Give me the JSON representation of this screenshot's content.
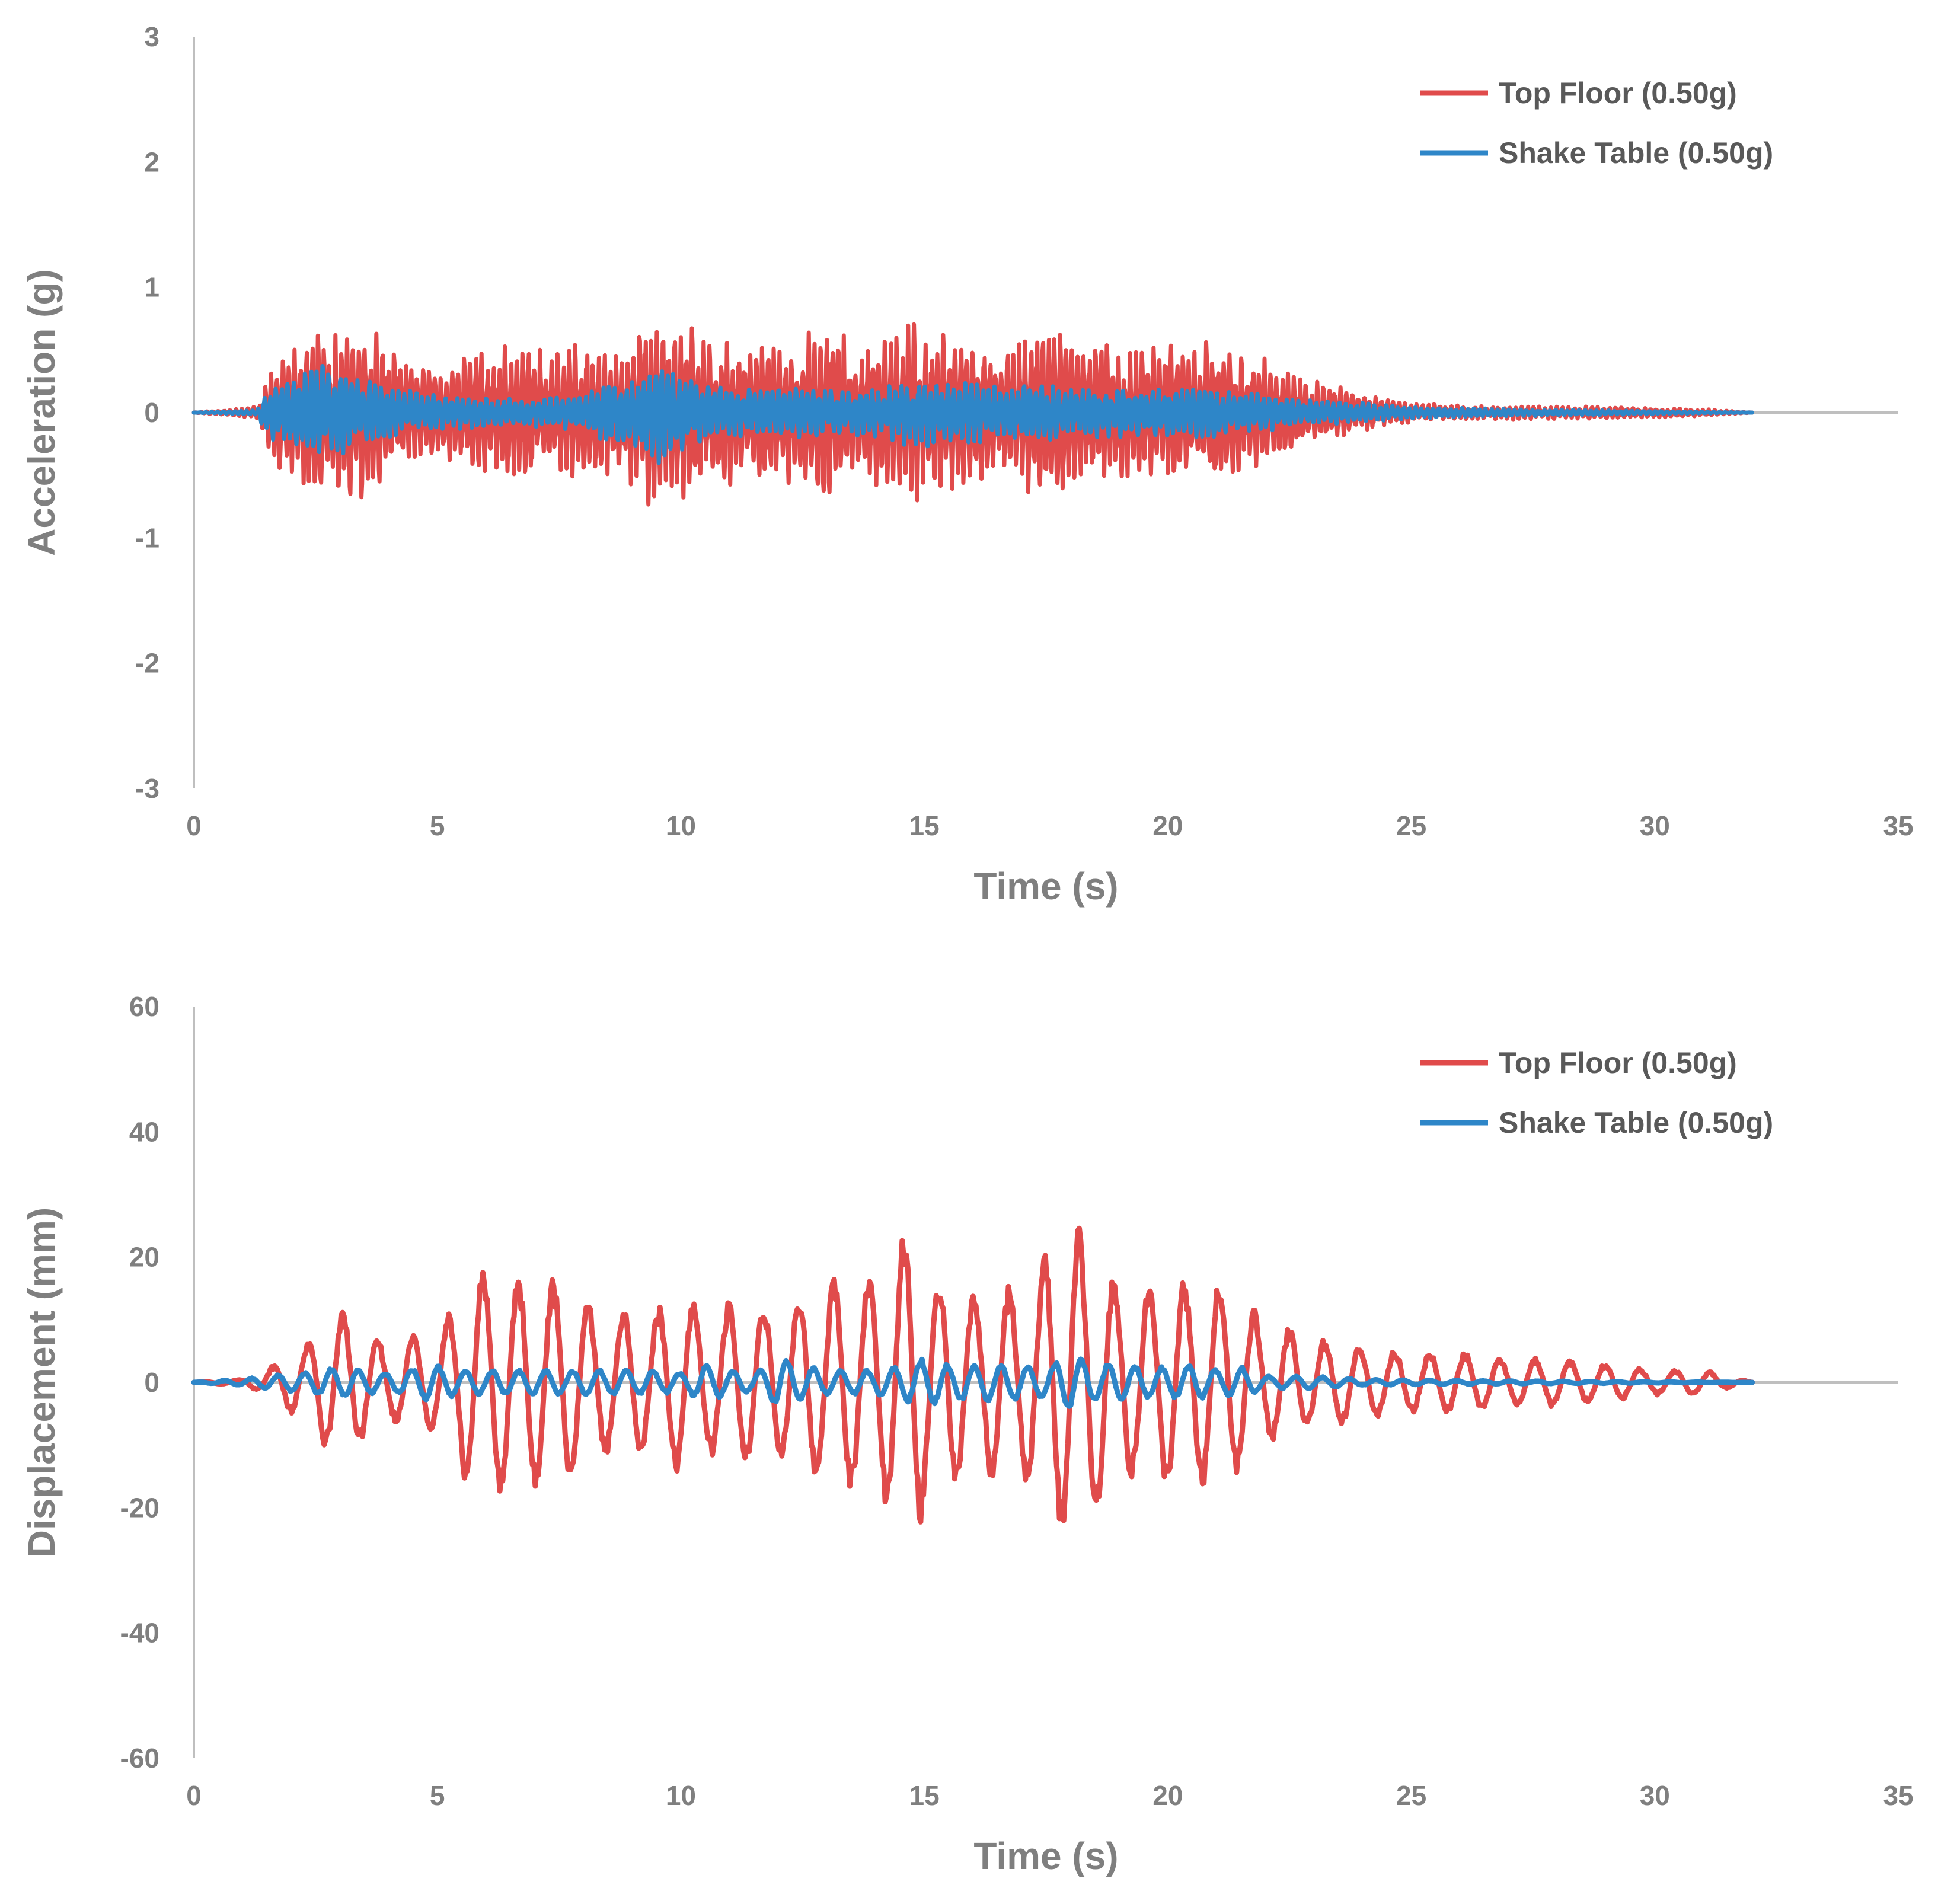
{
  "chart_data": [
    {
      "type": "line",
      "xlabel": "Time (s)",
      "ylabel": "Acceleration (g)",
      "xlim": [
        0,
        35
      ],
      "ylim": [
        -3,
        3
      ],
      "x_ticks": [
        0,
        5,
        10,
        15,
        20,
        25,
        30,
        35
      ],
      "y_ticks": [
        -3,
        -2,
        -1,
        0,
        1,
        2,
        3
      ],
      "x_tick_labels": [
        "0",
        "5",
        "10",
        "15",
        "20",
        "25",
        "30",
        "35"
      ],
      "y_tick_labels": [
        "-3",
        "-2",
        "-1",
        "0",
        "1",
        "2",
        "3"
      ],
      "grid": false,
      "legend_position": "top-right",
      "series": [
        {
          "name": "Top Floor (0.50g)",
          "color": "#e04b4b",
          "x": [
            0,
            1.3,
            1.6,
            1.8,
            2.0,
            2.2,
            2.5,
            2.8,
            3.0,
            3.3,
            3.5,
            3.8,
            4.2,
            4.5,
            5.0,
            5.3,
            5.8,
            6.3,
            6.8,
            7.3,
            7.8,
            8.3,
            8.8,
            9.3,
            9.6,
            10.0,
            10.3,
            10.6,
            11.0,
            11.5,
            12.0,
            12.5,
            13.0,
            13.5,
            14.0,
            14.5,
            14.8,
            15.0,
            15.5,
            16.0,
            16.5,
            17.0,
            17.5,
            18.0,
            18.5,
            19.0,
            19.5,
            20.0,
            20.5,
            21.0,
            21.5,
            22.0,
            22.5,
            23.0,
            23.5,
            24.0,
            24.5,
            25.0,
            26.0,
            27.0,
            28.0,
            29.0,
            30.0,
            31.0,
            32.0
          ],
          "values": [
            0,
            0.05,
            0.35,
            0.6,
            -0.5,
            0.55,
            0.75,
            -0.6,
            0.7,
            -0.7,
            0.83,
            -0.6,
            0.45,
            -0.45,
            0.35,
            -0.4,
            0.5,
            -0.55,
            0.6,
            -0.5,
            0.55,
            -0.55,
            0.5,
            0.78,
            -0.65,
            0.7,
            -0.75,
            0.6,
            -0.6,
            0.55,
            -0.55,
            0.65,
            -0.7,
            0.6,
            -0.6,
            0.7,
            0.8,
            -0.6,
            0.65,
            -0.65,
            0.55,
            -0.6,
            -0.8,
            0.65,
            -0.6,
            0.55,
            -0.5,
            0.6,
            -0.5,
            0.65,
            -0.45,
            0.45,
            -0.35,
            0.25,
            -0.25,
            0.15,
            -0.12,
            0.08,
            -0.06,
            0.06,
            -0.05,
            0.05,
            -0.04,
            0.03,
            0.0
          ]
        },
        {
          "name": "Shake Table (0.50g)",
          "color": "#2e86c8",
          "x": [
            0,
            1.3,
            1.6,
            1.8,
            2.0,
            2.3,
            2.6,
            2.8,
            3.0,
            3.5,
            4.0,
            5.0,
            6.0,
            7.0,
            8.0,
            8.5,
            9.0,
            9.5,
            10.0,
            11.0,
            12.0,
            13.0,
            14.0,
            15.0,
            16.0,
            17.0,
            18.0,
            19.0,
            20.0,
            21.0,
            22.0,
            23.0,
            24.0,
            25.0,
            27.0,
            29.0,
            32.0
          ],
          "values": [
            0,
            0.02,
            0.25,
            -0.3,
            0.3,
            -0.35,
            0.45,
            -0.4,
            0.35,
            -0.3,
            0.2,
            -0.15,
            0.12,
            -0.12,
            0.15,
            -0.25,
            0.3,
            -0.45,
            0.3,
            -0.2,
            0.2,
            -0.2,
            0.2,
            0.3,
            -0.25,
            0.25,
            -0.2,
            0.2,
            -0.2,
            0.2,
            -0.15,
            0.1,
            -0.08,
            0.05,
            -0.03,
            0.02,
            0.0
          ]
        }
      ]
    },
    {
      "type": "line",
      "xlabel": "Time (s)",
      "ylabel": "Displacement (mm)",
      "xlim": [
        0,
        35
      ],
      "ylim": [
        -60,
        60
      ],
      "x_ticks": [
        0,
        5,
        10,
        15,
        20,
        25,
        30,
        35
      ],
      "y_ticks": [
        -60,
        -40,
        -20,
        0,
        20,
        40,
        60
      ],
      "x_tick_labels": [
        "0",
        "5",
        "10",
        "15",
        "20",
        "25",
        "30",
        "35"
      ],
      "y_tick_labels": [
        "-60",
        "-40",
        "-20",
        "0",
        "20",
        "40",
        "60"
      ],
      "grid": false,
      "legend_position": "top-right",
      "series": [
        {
          "name": "Top Floor (0.50g)",
          "color": "#e04b4b",
          "x": [
            0,
            1.0,
            1.5,
            2.0,
            2.5,
            2.8,
            3.1,
            3.5,
            4.0,
            4.5,
            5.0,
            5.5,
            5.8,
            6.1,
            6.5,
            6.9,
            7.3,
            7.7,
            8.0,
            8.5,
            9.0,
            9.5,
            10.0,
            10.5,
            11.0,
            11.5,
            12.0,
            12.5,
            13.0,
            13.5,
            14.0,
            14.5,
            14.9,
            15.2,
            15.5,
            16.0,
            16.5,
            17.0,
            17.5,
            18.0,
            18.3,
            18.6,
            19.0,
            19.5,
            20.0,
            20.5,
            21.0,
            21.5,
            22.0,
            22.5,
            23.0,
            23.5,
            24.0,
            25.0,
            26.0,
            27.0,
            28.0,
            29.0,
            30.0,
            31.0,
            32.0
          ],
          "values": [
            0,
            0.5,
            2,
            -5,
            8,
            -12,
            12,
            -9,
            6,
            -8,
            8,
            -15,
            19,
            -19,
            18,
            -18,
            17,
            -16,
            14,
            -12,
            12,
            -12,
            15,
            -12,
            13,
            -14,
            12,
            -15,
            17,
            -18,
            18,
            25,
            -24,
            16,
            -18,
            14,
            -16,
            15,
            -22,
            26,
            -25,
            21,
            -16,
            16,
            -17,
            17,
            -18,
            14,
            -10,
            9,
            -7,
            7,
            -6,
            5,
            -5,
            4,
            -4,
            3,
            -2,
            2,
            0
          ]
        },
        {
          "name": "Shake Table (0.50g)",
          "color": "#2e86c8",
          "x": [
            0,
            1.0,
            2.0,
            3.0,
            3.5,
            4.0,
            4.8,
            5.5,
            6.0,
            7.0,
            8.0,
            9.0,
            9.5,
            10.0,
            10.5,
            11.0,
            11.5,
            12.0,
            12.5,
            13.0,
            14.0,
            14.5,
            15.0,
            15.5,
            16.0,
            17.0,
            17.5,
            18.0,
            18.5,
            19.0,
            20.0,
            20.5,
            21.0,
            21.5,
            22.0,
            23.0,
            24.0,
            26.0,
            28.0,
            30.0,
            32.0
          ],
          "values": [
            0,
            0.5,
            1.5,
            2.5,
            -2,
            1.5,
            3,
            -2,
            2,
            -2,
            2,
            -2,
            2,
            1.5,
            -3,
            2,
            1.5,
            4,
            -3,
            2,
            -2,
            3,
            4,
            -3,
            3,
            -3,
            2.5,
            5,
            -3,
            3,
            -2.5,
            3,
            -2,
            2.5,
            -1,
            1,
            -0.5,
            0.3,
            0.2,
            0.1,
            0
          ]
        }
      ]
    }
  ]
}
